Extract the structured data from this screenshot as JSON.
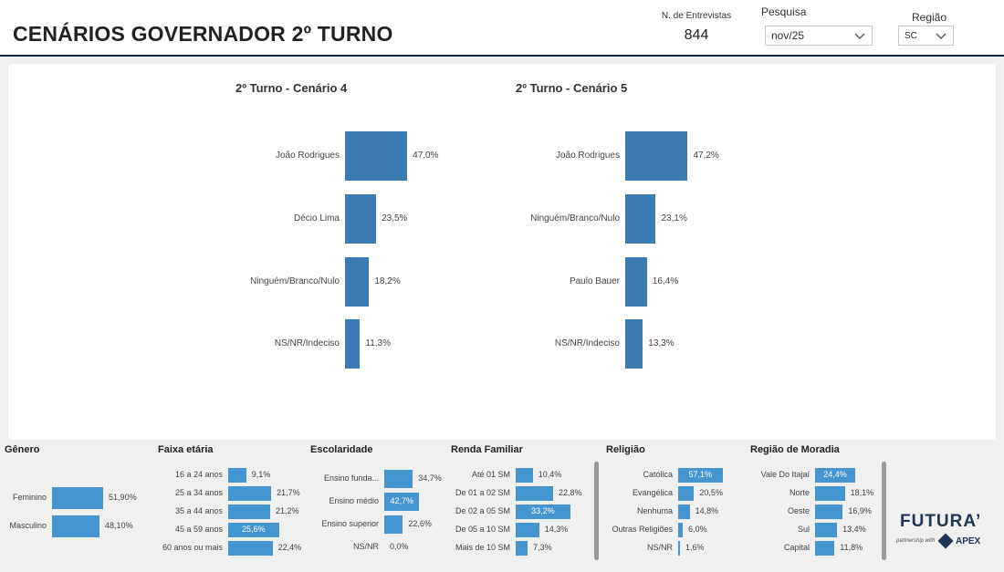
{
  "header": {
    "title": "CENÁRIOS GOVERNADOR 2º TURNO",
    "kpi_label": "N. de Entrevistas",
    "kpi_value": "844",
    "pesquisa_label": "Pesquisa",
    "pesquisa_value": "nov/25",
    "regiao_label": "Região",
    "regiao_value": "SC"
  },
  "chart_data": [
    {
      "type": "bar",
      "title": "2º Turno - Cenário 4",
      "categories": [
        "João Rodrigues",
        "Décio Lima",
        "Ninguém/Branco/Nulo",
        "NS/NR/Indeciso"
      ],
      "values": [
        47.0,
        23.5,
        18.2,
        11.3
      ],
      "labels": [
        "47,0%",
        "23,5%",
        "18,2%",
        "11,3%"
      ],
      "color": "#3b7bb1"
    },
    {
      "type": "bar",
      "title": "2º Turno - Cenário 5",
      "categories": [
        "João Rodrigues",
        "Ninguém/Branco/Nulo",
        "Paulo Bauer",
        "NS/NR/Indeciso"
      ],
      "values": [
        47.2,
        23.1,
        16.4,
        13.3
      ],
      "labels": [
        "47,2%",
        "23,1%",
        "16,4%",
        "13,3%"
      ],
      "color": "#3b7bb1"
    }
  ],
  "panels": [
    {
      "title": "Gênero",
      "rows": [
        {
          "label": "Feminino",
          "value": 51.9,
          "text": "51,90%"
        },
        {
          "label": "Masculino",
          "value": 48.1,
          "text": "48,10%"
        }
      ]
    },
    {
      "title": "Faixa etária",
      "rows": [
        {
          "label": "16 a 24 anos",
          "value": 9.1,
          "text": "9,1%"
        },
        {
          "label": "25 a 34 anos",
          "value": 21.7,
          "text": "21,7%"
        },
        {
          "label": "35 a 44 anos",
          "value": 21.2,
          "text": "21,2%"
        },
        {
          "label": "45 a 59 anos",
          "value": 25.6,
          "text": "25,6%"
        },
        {
          "label": "60 anos ou mais",
          "value": 22.4,
          "text": "22,4%"
        }
      ]
    },
    {
      "title": "Escolaridade",
      "rows": [
        {
          "label": "Ensino funda...",
          "value": 34.7,
          "text": "34,7%"
        },
        {
          "label": "Ensino médio",
          "value": 42.7,
          "text": "42,7%"
        },
        {
          "label": "Ensino superior",
          "value": 22.6,
          "text": "22,6%"
        },
        {
          "label": "NS/NR",
          "value": 0.0,
          "text": "0,0%"
        }
      ]
    },
    {
      "title": "Renda Familiar",
      "rows": [
        {
          "label": "Até 01 SM",
          "value": 10.4,
          "text": "10,4%"
        },
        {
          "label": "De 01 a 02 SM",
          "value": 22.8,
          "text": "22,8%"
        },
        {
          "label": "De 02 a 05 SM",
          "value": 33.2,
          "text": "33,2%"
        },
        {
          "label": "De 05 a 10 SM",
          "value": 14.3,
          "text": "14,3%"
        },
        {
          "label": "Mais de 10 SM",
          "value": 7.3,
          "text": "7,3%"
        }
      ]
    },
    {
      "title": "Religião",
      "rows": [
        {
          "label": "Católica",
          "value": 57.1,
          "text": "57,1%"
        },
        {
          "label": "Evangélica",
          "value": 20.5,
          "text": "20,5%"
        },
        {
          "label": "Nenhuma",
          "value": 14.8,
          "text": "14,8%"
        },
        {
          "label": "Outras Religiões",
          "value": 6.0,
          "text": "6,0%"
        },
        {
          "label": "NS/NR",
          "value": 1.6,
          "text": "1,6%"
        }
      ]
    },
    {
      "title": "Região de Moradia",
      "rows": [
        {
          "label": "Vale Do Itajaí",
          "value": 24.4,
          "text": "24,4%"
        },
        {
          "label": "Norte",
          "value": 18.1,
          "text": "18,1%"
        },
        {
          "label": "Oeste",
          "value": 16.9,
          "text": "16,9%"
        },
        {
          "label": "Sul",
          "value": 13.4,
          "text": "13,4%"
        },
        {
          "label": "Capital",
          "value": 11.8,
          "text": "11,8%"
        }
      ]
    }
  ],
  "footer": {
    "logo": "FUTURA’",
    "partnership": "partnership with",
    "apex": "APEX"
  }
}
